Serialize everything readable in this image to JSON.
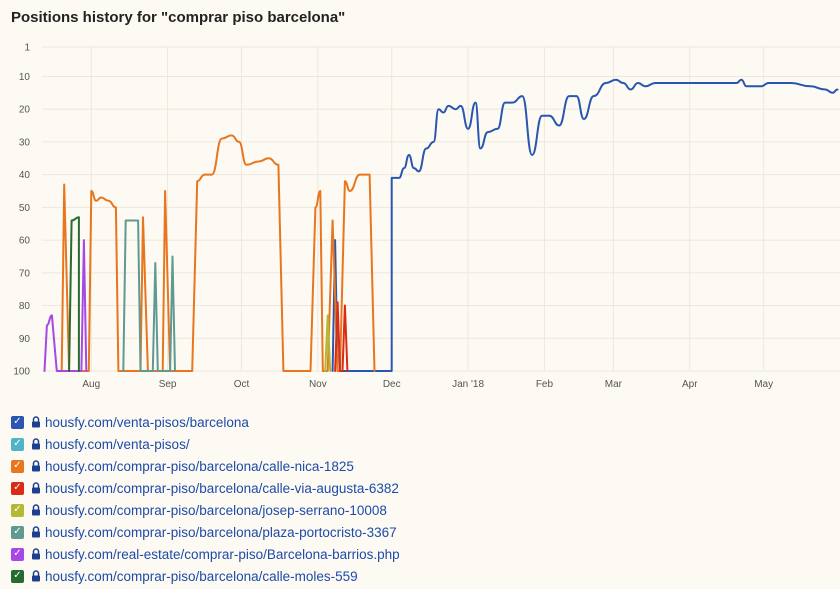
{
  "title": "Positions history for \"comprar piso barcelona\"",
  "chart_data": {
    "type": "line",
    "title": "Positions history for \"comprar piso barcelona\"",
    "xlabel": "",
    "ylabel": "",
    "x_ticks": [
      {
        "label": "Aug",
        "date": "2017-08-01"
      },
      {
        "label": "Sep",
        "date": "2017-09-01"
      },
      {
        "label": "Oct",
        "date": "2017-10-01"
      },
      {
        "label": "Nov",
        "date": "2017-11-01"
      },
      {
        "label": "Dec",
        "date": "2017-12-01"
      },
      {
        "label": "Jan '18",
        "date": "2018-01-01"
      },
      {
        "label": "Feb",
        "date": "2018-02-01"
      },
      {
        "label": "Mar",
        "date": "2018-03-01"
      },
      {
        "label": "Apr",
        "date": "2018-04-01"
      },
      {
        "label": "May",
        "date": "2018-05-01"
      }
    ],
    "y_ticks": [
      1,
      10,
      20,
      30,
      40,
      50,
      60,
      70,
      80,
      90,
      100
    ],
    "ylim": [
      100,
      1
    ],
    "y_inverted": true,
    "xlim": [
      "2017-07-12",
      "2018-06-01"
    ],
    "grid": true,
    "legend_position": "bottom",
    "series": [
      {
        "name": "housfy.com/venta-pisos/barcelona",
        "color": "#2a55b0",
        "points": [
          [
            "2017-11-07",
            100
          ],
          [
            "2017-11-08",
            60
          ],
          [
            "2017-11-09",
            100
          ],
          [
            "2017-12-01",
            100
          ],
          [
            "2017-12-01",
            41
          ],
          [
            "2017-12-04",
            41
          ],
          [
            "2017-12-06",
            38
          ],
          [
            "2017-12-08",
            34
          ],
          [
            "2017-12-10",
            38
          ],
          [
            "2017-12-12",
            39
          ],
          [
            "2017-12-15",
            32
          ],
          [
            "2017-12-18",
            30
          ],
          [
            "2017-12-20",
            20
          ],
          [
            "2017-12-22",
            21
          ],
          [
            "2017-12-24",
            19
          ],
          [
            "2017-12-27",
            20
          ],
          [
            "2017-12-29",
            19
          ],
          [
            "2018-01-01",
            26
          ],
          [
            "2018-01-04",
            18
          ],
          [
            "2018-01-06",
            32
          ],
          [
            "2018-01-09",
            27
          ],
          [
            "2018-01-13",
            26
          ],
          [
            "2018-01-16",
            18
          ],
          [
            "2018-01-19",
            18
          ],
          [
            "2018-01-23",
            16
          ],
          [
            "2018-01-27",
            34
          ],
          [
            "2018-01-31",
            22
          ],
          [
            "2018-02-03",
            22
          ],
          [
            "2018-02-07",
            25
          ],
          [
            "2018-02-11",
            16
          ],
          [
            "2018-02-14",
            16
          ],
          [
            "2018-02-17",
            23
          ],
          [
            "2018-02-21",
            16
          ],
          [
            "2018-02-26",
            12
          ],
          [
            "2018-03-02",
            11
          ],
          [
            "2018-03-05",
            12
          ],
          [
            "2018-03-08",
            14
          ],
          [
            "2018-03-11",
            12
          ],
          [
            "2018-03-14",
            13
          ],
          [
            "2018-03-18",
            12
          ],
          [
            "2018-03-24",
            12
          ],
          [
            "2018-04-05",
            12
          ],
          [
            "2018-04-15",
            12
          ],
          [
            "2018-04-20",
            12
          ],
          [
            "2018-04-22",
            11
          ],
          [
            "2018-04-24",
            13
          ],
          [
            "2018-04-30",
            13
          ],
          [
            "2018-05-03",
            12
          ],
          [
            "2018-05-12",
            12
          ],
          [
            "2018-05-20",
            13
          ],
          [
            "2018-05-26",
            14
          ],
          [
            "2018-05-29",
            15
          ],
          [
            "2018-05-31",
            14
          ]
        ]
      },
      {
        "name": "housfy.com/venta-pisos/",
        "color": "#4eb5c9",
        "points": []
      },
      {
        "name": "housfy.com/comprar-piso/barcelona/calle-nica-1825",
        "color": "#e8761f",
        "points": [
          [
            "2017-07-20",
            100
          ],
          [
            "2017-07-21",
            43
          ],
          [
            "2017-07-23",
            100
          ],
          [
            "2017-07-31",
            100
          ],
          [
            "2017-08-01",
            45
          ],
          [
            "2017-08-03",
            48
          ],
          [
            "2017-08-05",
            47
          ],
          [
            "2017-08-08",
            48
          ],
          [
            "2017-08-11",
            50
          ],
          [
            "2017-08-12",
            100
          ],
          [
            "2017-08-21",
            100
          ],
          [
            "2017-08-22",
            53
          ],
          [
            "2017-08-24",
            100
          ],
          [
            "2017-08-30",
            100
          ],
          [
            "2017-08-31",
            45
          ],
          [
            "2017-09-02",
            100
          ],
          [
            "2017-09-11",
            100
          ],
          [
            "2017-09-13",
            42
          ],
          [
            "2017-09-16",
            40
          ],
          [
            "2017-09-19",
            40
          ],
          [
            "2017-09-23",
            29
          ],
          [
            "2017-09-27",
            28
          ],
          [
            "2017-09-30",
            30
          ],
          [
            "2017-10-03",
            37
          ],
          [
            "2017-10-08",
            36
          ],
          [
            "2017-10-12",
            35
          ],
          [
            "2017-10-16",
            37
          ],
          [
            "2017-10-18",
            100
          ],
          [
            "2017-10-29",
            100
          ],
          [
            "2017-10-31",
            50
          ],
          [
            "2017-11-02",
            45
          ],
          [
            "2017-11-03",
            100
          ],
          [
            "2017-11-05",
            100
          ],
          [
            "2017-11-07",
            54
          ],
          [
            "2017-11-09",
            100
          ],
          [
            "2017-11-10",
            100
          ],
          [
            "2017-11-12",
            42
          ],
          [
            "2017-11-14",
            45
          ],
          [
            "2017-11-18",
            40
          ],
          [
            "2017-11-22",
            40
          ],
          [
            "2017-11-24",
            100
          ]
        ]
      },
      {
        "name": "housfy.com/comprar-piso/barcelona/calle-via-augusta-6382",
        "color": "#d92c14",
        "points": [
          [
            "2017-11-08",
            100
          ],
          [
            "2017-11-09",
            79
          ],
          [
            "2017-11-10",
            100
          ],
          [
            "2017-11-11",
            100
          ],
          [
            "2017-11-12",
            80
          ],
          [
            "2017-11-13",
            100
          ]
        ]
      },
      {
        "name": "housfy.com/comprar-piso/barcelona/josep-serrano-10008",
        "color": "#b3b933",
        "points": [
          [
            "2017-11-04",
            100
          ],
          [
            "2017-11-05",
            83
          ],
          [
            "2017-11-06",
            100
          ]
        ]
      },
      {
        "name": "housfy.com/comprar-piso/barcelona/plaza-portocristo-3367",
        "color": "#5e9a92",
        "points": [
          [
            "2017-08-14",
            100
          ],
          [
            "2017-08-15",
            54
          ],
          [
            "2017-08-20",
            54
          ],
          [
            "2017-08-21",
            100
          ],
          [
            "2017-08-26",
            100
          ],
          [
            "2017-08-27",
            67
          ],
          [
            "2017-08-28",
            100
          ],
          [
            "2017-09-02",
            100
          ],
          [
            "2017-09-03",
            65
          ],
          [
            "2017-09-04",
            100
          ]
        ]
      },
      {
        "name": "housfy.com/real-estate/comprar-piso/Barcelona-barrios.php",
        "color": "#a748e6",
        "points": [
          [
            "2017-07-13",
            100
          ],
          [
            "2017-07-14",
            86
          ],
          [
            "2017-07-16",
            83
          ],
          [
            "2017-07-18",
            100
          ],
          [
            "2017-07-28",
            100
          ],
          [
            "2017-07-29",
            60
          ],
          [
            "2017-07-30",
            100
          ]
        ]
      },
      {
        "name": "housfy.com/comprar-piso/barcelona/calle-moles-559",
        "color": "#286b32",
        "points": [
          [
            "2017-07-23",
            100
          ],
          [
            "2017-07-24",
            54
          ],
          [
            "2017-07-27",
            53
          ],
          [
            "2017-07-27",
            100
          ]
        ]
      }
    ]
  },
  "legend": [
    {
      "label": "housfy.com/venta-pisos/barcelona",
      "color": "#2a55b0"
    },
    {
      "label": "housfy.com/venta-pisos/",
      "color": "#4eb5c9"
    },
    {
      "label": "housfy.com/comprar-piso/barcelona/calle-nica-1825",
      "color": "#e8761f"
    },
    {
      "label": "housfy.com/comprar-piso/barcelona/calle-via-augusta-6382",
      "color": "#d92c14"
    },
    {
      "label": "housfy.com/comprar-piso/barcelona/josep-serrano-10008",
      "color": "#b3b933"
    },
    {
      "label": "housfy.com/comprar-piso/barcelona/plaza-portocristo-3367",
      "color": "#5e9a92"
    },
    {
      "label": "housfy.com/real-estate/comprar-piso/Barcelona-barrios.php",
      "color": "#a748e6"
    },
    {
      "label": "housfy.com/comprar-piso/barcelona/calle-moles-559",
      "color": "#286b32"
    }
  ]
}
